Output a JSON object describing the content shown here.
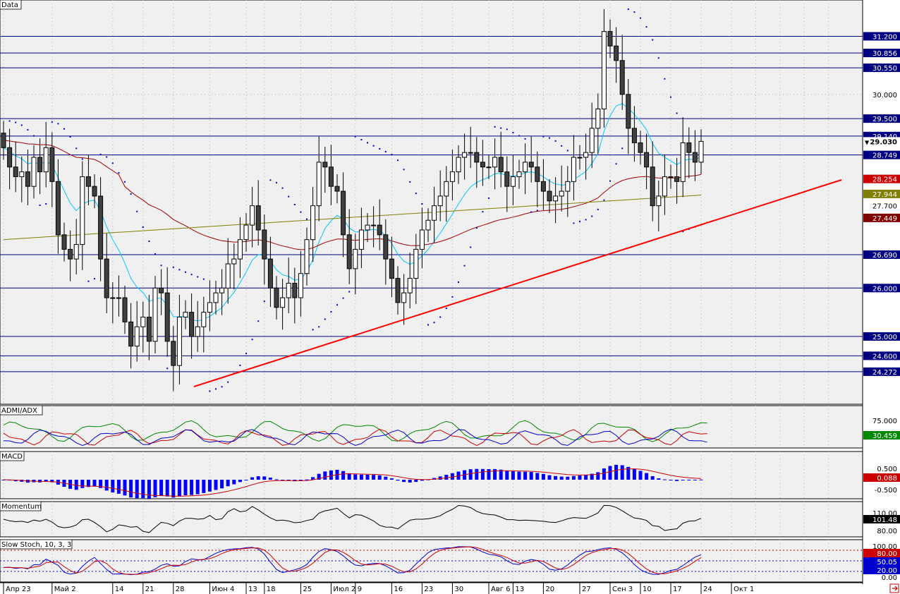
{
  "panels": {
    "price_title": "Data",
    "admi_title": "ADMI/ADX",
    "macd_title": "MACD",
    "momentum_title": "Momentum",
    "stoch_title": "Slow Stoch, 10, 3, 3"
  },
  "x_axis": {
    "labels": [
      "Апр 23",
      "Май 2",
      "14",
      "21",
      "28",
      "Июн 4",
      "13",
      "18",
      "25",
      "Июл 2",
      "9",
      "16",
      "23",
      "30",
      "Авг 6",
      "13",
      "20",
      "27",
      "Сен 3",
      "10",
      "17",
      "24",
      "Окт 1"
    ],
    "label_bar_index": [
      0,
      8,
      18,
      23,
      28,
      34,
      40,
      43,
      49,
      54,
      58,
      64,
      69,
      74,
      80,
      84,
      89,
      95,
      100,
      105,
      110,
      115,
      120
    ]
  },
  "price_axis": {
    "ticks": [
      "31.200",
      "30.856",
      "30.550",
      "30.000",
      "29.500",
      "29.140",
      "28.749",
      "26.690",
      "26.000",
      "25.000",
      "24.600",
      "24.272"
    ],
    "tick_values": [
      31.2,
      30.856,
      30.55,
      30.0,
      29.5,
      29.14,
      28.749,
      26.69,
      26.0,
      25.0,
      24.6,
      24.272
    ],
    "current_price": "29.030",
    "current_marker": "▼",
    "indicator_labels": [
      {
        "text": "28.254",
        "value": 28.254,
        "color": "#cc0000"
      },
      {
        "text": "27.944",
        "value": 27.944,
        "color": "#808000"
      },
      {
        "text": "27.449",
        "value": 27.449,
        "color": "#800000"
      }
    ],
    "hidden_tick": "27.700"
  },
  "admi_axis": {
    "ticks": [
      "75.000"
    ],
    "current": "30.459",
    "current_color": "#008800"
  },
  "macd_axis": {
    "ticks": [
      "0.500",
      "-0.500"
    ],
    "current": "0.088",
    "current_color": "#cc0000"
  },
  "momentum_axis": {
    "ticks": [
      "110.00",
      "80.00"
    ],
    "current": "101.48",
    "current_color": "#000000"
  },
  "stoch_axis": {
    "ticks": [
      "100.00",
      "0.00"
    ],
    "levels": [
      {
        "text": "80.00",
        "color": "#cc0000"
      },
      {
        "text": "50.05",
        "color": "#0000cc"
      },
      {
        "text": "20.00",
        "color": "#0000cc"
      }
    ]
  },
  "colors": {
    "background": "#f0f0f0",
    "grid_dots": "#b0b0b0",
    "hlines": "#000080",
    "trendline": "#ff0000",
    "ma_fast": "#00c8ff",
    "ma_slow": "#a00000",
    "ma_long": "#808000",
    "sar": "#0000cc",
    "bull": "#ffffff",
    "bear": "#404040",
    "macd_hist": "#0000ff",
    "macd_signal": "#cc0000"
  },
  "chart_data": {
    "type": "candlestick",
    "y_range": [
      23.6,
      31.95
    ],
    "bars_open": [
      29.2,
      28.9,
      28.5,
      28.3,
      28.4,
      28.1,
      28.7,
      28.4,
      28.9,
      28.2,
      27.1,
      26.8,
      26.6,
      26.9,
      28.3,
      28.1,
      27.9,
      26.6,
      25.8,
      25.8,
      25.8,
      25.3,
      24.8,
      25.2,
      25.4,
      24.9,
      26.0,
      25.9,
      24.9,
      24.4,
      25.4,
      25.5,
      25.0,
      25.2,
      25.5,
      25.7,
      25.9,
      26.0,
      26.5,
      26.6,
      27.0,
      27.3,
      27.7,
      27.2,
      26.6,
      26.0,
      25.6,
      25.8,
      26.1,
      25.8,
      26.3,
      27.0,
      27.7,
      28.6,
      28.5,
      28.1,
      28.0,
      27.1,
      26.4,
      26.8,
      27.2,
      27.3,
      27.3,
      27.1,
      26.6,
      26.2,
      25.7,
      25.9,
      26.2,
      26.8,
      27.2,
      27.4,
      27.7,
      27.9,
      28.2,
      28.4,
      28.7,
      28.8,
      28.8,
      28.6,
      28.5,
      28.5,
      28.7,
      28.4,
      28.1,
      28.3,
      28.4,
      28.6,
      28.5,
      28.2,
      28.0,
      27.8,
      27.9,
      28.0,
      28.2,
      28.7,
      28.7,
      28.8,
      29.3,
      29.7,
      31.3,
      31.0,
      30.7,
      30.0,
      29.3,
      29.0,
      28.8,
      28.5,
      27.7,
      27.9,
      28.3,
      28.3,
      28.2,
      29.0,
      28.8,
      28.6,
      29.0
    ],
    "bars_close": [
      28.9,
      28.5,
      28.3,
      28.4,
      28.1,
      28.7,
      28.4,
      28.9,
      28.2,
      27.1,
      26.8,
      26.6,
      26.9,
      28.3,
      28.1,
      27.9,
      26.6,
      25.8,
      25.8,
      25.8,
      25.3,
      24.8,
      25.2,
      25.4,
      24.9,
      26.0,
      25.9,
      24.9,
      24.4,
      25.4,
      25.5,
      25.0,
      25.2,
      25.5,
      25.7,
      25.9,
      26.0,
      26.5,
      26.6,
      27.0,
      27.3,
      27.7,
      27.2,
      26.6,
      26.0,
      25.6,
      25.8,
      26.1,
      25.8,
      26.3,
      27.0,
      27.7,
      28.6,
      28.5,
      28.1,
      28.0,
      27.1,
      26.4,
      26.8,
      27.2,
      27.3,
      27.3,
      27.1,
      26.6,
      26.2,
      25.7,
      25.9,
      26.2,
      26.8,
      27.2,
      27.4,
      27.7,
      27.9,
      28.2,
      28.4,
      28.7,
      28.8,
      28.8,
      28.6,
      28.5,
      28.5,
      28.7,
      28.4,
      28.1,
      28.3,
      28.4,
      28.6,
      28.5,
      28.2,
      28.0,
      27.8,
      27.9,
      28.0,
      28.2,
      28.7,
      28.7,
      28.8,
      29.3,
      29.7,
      31.3,
      31.0,
      30.7,
      30.0,
      29.3,
      29.0,
      28.8,
      28.5,
      27.7,
      27.9,
      28.3,
      28.3,
      28.2,
      29.0,
      28.8,
      28.6,
      29.03
    ],
    "indicators": {
      "admi_current": 30.459,
      "macd_current": 0.088,
      "momentum_current": 101.48,
      "stoch_levels": [
        80,
        50.05,
        20
      ]
    }
  }
}
